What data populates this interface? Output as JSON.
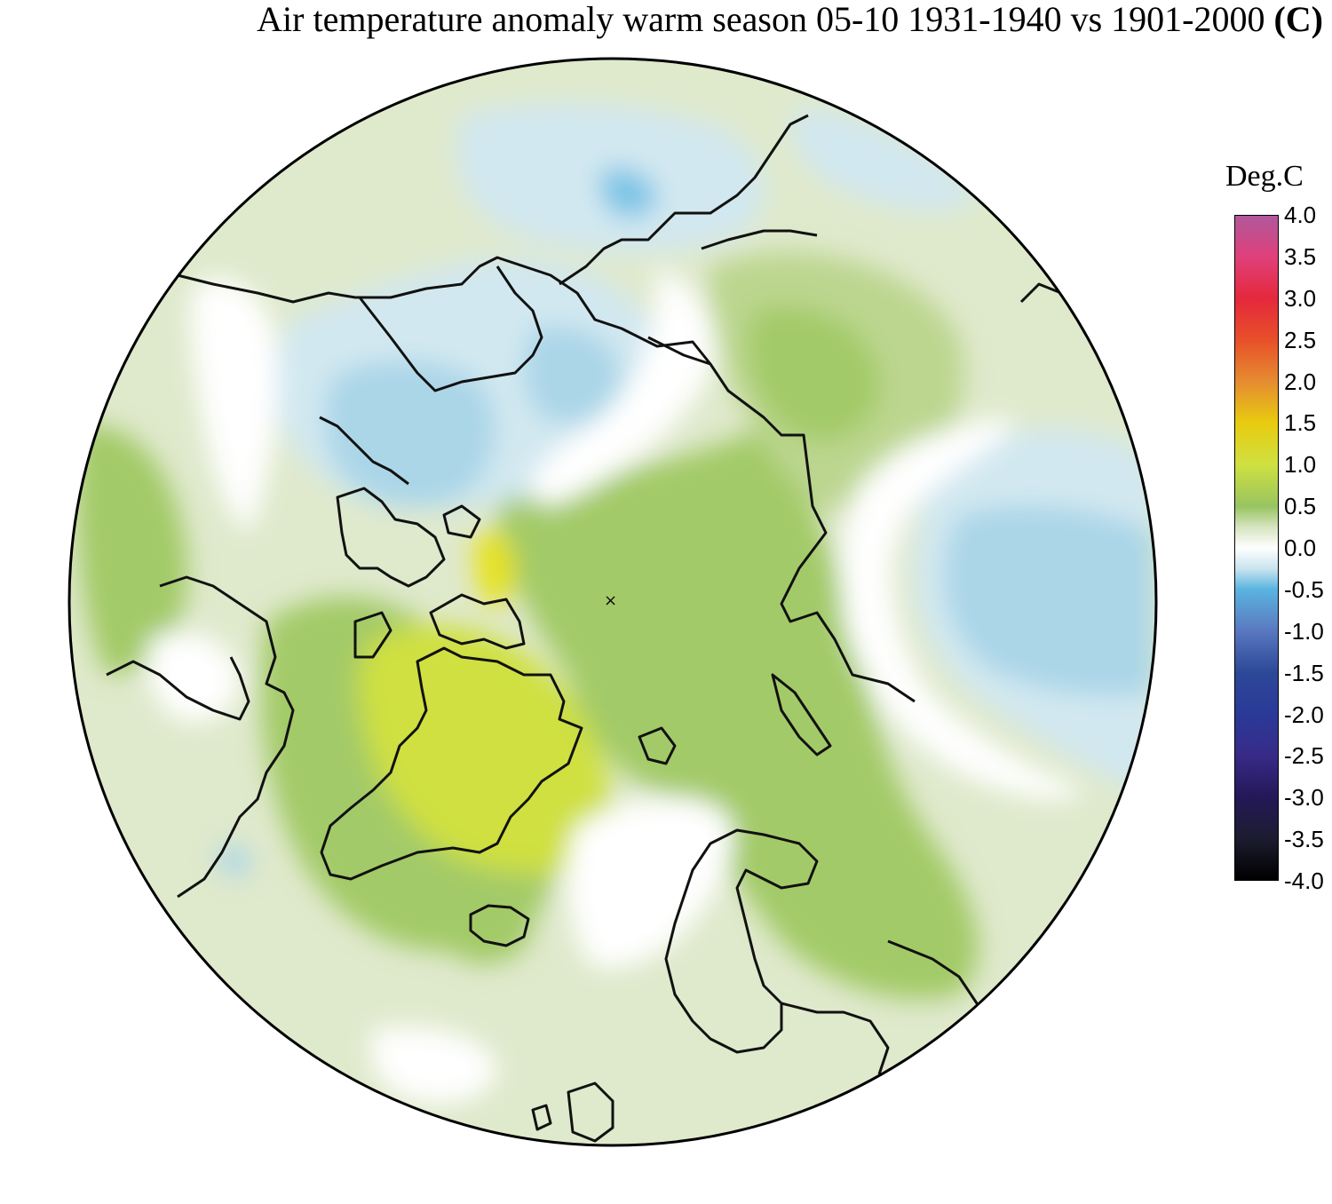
{
  "title": {
    "main": "Air temperature anomaly warm season 05-10 1931-1940 vs 1901-2000 ",
    "unit": "(C)"
  },
  "legend": {
    "title": "Deg.C",
    "ticks": [
      "4.0",
      "3.5",
      "3.0",
      "2.5",
      "2.0",
      "1.5",
      "1.0",
      "0.5",
      "0.0",
      "-0.5",
      "-1.0",
      "-1.5",
      "-2.0",
      "-2.5",
      "-3.0",
      "-3.5",
      "-4.0"
    ],
    "stops": [
      {
        "value": 4.0,
        "color": "#b0589c"
      },
      {
        "value": 3.5,
        "color": "#e0407a"
      },
      {
        "value": 3.0,
        "color": "#e5283c"
      },
      {
        "value": 2.5,
        "color": "#e8502a"
      },
      {
        "value": 2.0,
        "color": "#e58c30"
      },
      {
        "value": 1.5,
        "color": "#e8cc10"
      },
      {
        "value": 1.0,
        "color": "#cfe040"
      },
      {
        "value": 0.5,
        "color": "#98c460"
      },
      {
        "value": 0.25,
        "color": "#d6e4c0"
      },
      {
        "value": 0.0,
        "color": "#ffffff"
      },
      {
        "value": -0.25,
        "color": "#c9e4ee"
      },
      {
        "value": -0.5,
        "color": "#5ab4e0"
      },
      {
        "value": -1.0,
        "color": "#5a78c0"
      },
      {
        "value": -1.5,
        "color": "#2c4898"
      },
      {
        "value": -2.0,
        "color": "#2a3a98"
      },
      {
        "value": -2.5,
        "color": "#382a88"
      },
      {
        "value": -3.0,
        "color": "#241858"
      },
      {
        "value": -3.5,
        "color": "#1c1c30"
      },
      {
        "value": -4.0,
        "color": "#000000"
      }
    ]
  },
  "map": {
    "background": "#dfe9cc",
    "regions": [
      {
        "anomaly": 0.6,
        "color": "#a3ca67"
      },
      {
        "anomaly": 0.4,
        "color": "#bcd68f"
      },
      {
        "anomaly": 1.1,
        "color": "#cfe040"
      },
      {
        "anomaly": 1.4,
        "color": "#e6e21a"
      },
      {
        "anomaly": -0.2,
        "color": "#d2e8f0"
      },
      {
        "anomaly": -0.4,
        "color": "#aad6e8"
      },
      {
        "anomaly": -0.6,
        "color": "#7cc4e6"
      },
      {
        "anomaly": 0.0,
        "color": "#ffffff"
      }
    ]
  }
}
